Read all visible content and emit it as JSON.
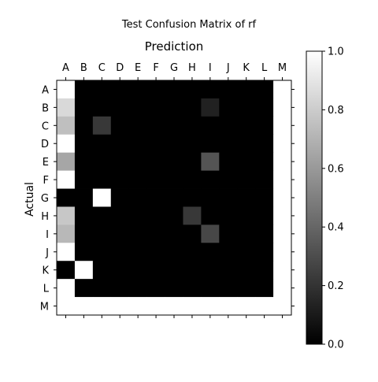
{
  "chart_data": {
    "type": "heatmap",
    "title": "Test Confusion Matrix of rf",
    "xlabel": "Prediction",
    "ylabel": "Actual",
    "x_categories": [
      "A",
      "B",
      "C",
      "D",
      "E",
      "F",
      "G",
      "H",
      "I",
      "J",
      "K",
      "L",
      "M"
    ],
    "y_categories": [
      "A",
      "B",
      "C",
      "D",
      "E",
      "F",
      "G",
      "H",
      "I",
      "J",
      "K",
      "L",
      "M"
    ],
    "values": [
      [
        1.0,
        0,
        0,
        0,
        0,
        0,
        0,
        0,
        0,
        0,
        0,
        0,
        1.0
      ],
      [
        0.85,
        0,
        0,
        0,
        0,
        0,
        0,
        0,
        0.13,
        0,
        0,
        0,
        1.0
      ],
      [
        0.75,
        0,
        0.22,
        0,
        0,
        0,
        0,
        0,
        0,
        0,
        0,
        0,
        1.0
      ],
      [
        1.0,
        0,
        0,
        0,
        0,
        0,
        0,
        0,
        0,
        0,
        0,
        0,
        1.0
      ],
      [
        0.65,
        0,
        0,
        0,
        0,
        0,
        0,
        0,
        0.33,
        0,
        0,
        0,
        1.0
      ],
      [
        1.0,
        0,
        0,
        0,
        0,
        0,
        0,
        0,
        0,
        0,
        0,
        0,
        1.0
      ],
      [
        0,
        0,
        1.0,
        0,
        0,
        0,
        0,
        0,
        0,
        0,
        0,
        0,
        1.0
      ],
      [
        0.78,
        0,
        0,
        0,
        0,
        0,
        0,
        0.22,
        0,
        0,
        0,
        0,
        1.0
      ],
      [
        0.72,
        0,
        0,
        0,
        0,
        0,
        0,
        0,
        0.28,
        0,
        0,
        0,
        1.0
      ],
      [
        1.0,
        0,
        0,
        0,
        0,
        0,
        0,
        0,
        0,
        0,
        0,
        0,
        1.0
      ],
      [
        0,
        1.0,
        0,
        0,
        0,
        0,
        0,
        0,
        0,
        0,
        0,
        0,
        1.0
      ],
      [
        1.0,
        0,
        0,
        0,
        0,
        0,
        0,
        0,
        0,
        0,
        0,
        0,
        1.0
      ],
      [
        1.0,
        1.0,
        1.0,
        1.0,
        1.0,
        1.0,
        1.0,
        1.0,
        1.0,
        1.0,
        1.0,
        1.0,
        1.0
      ]
    ],
    "colorbar": {
      "min": 0.0,
      "max": 1.0,
      "ticks": [
        "0.0",
        "0.2",
        "0.4",
        "0.6",
        "0.8",
        "1.0"
      ],
      "colormap": "gray"
    },
    "grid": false,
    "x_ticks_position": "top"
  }
}
